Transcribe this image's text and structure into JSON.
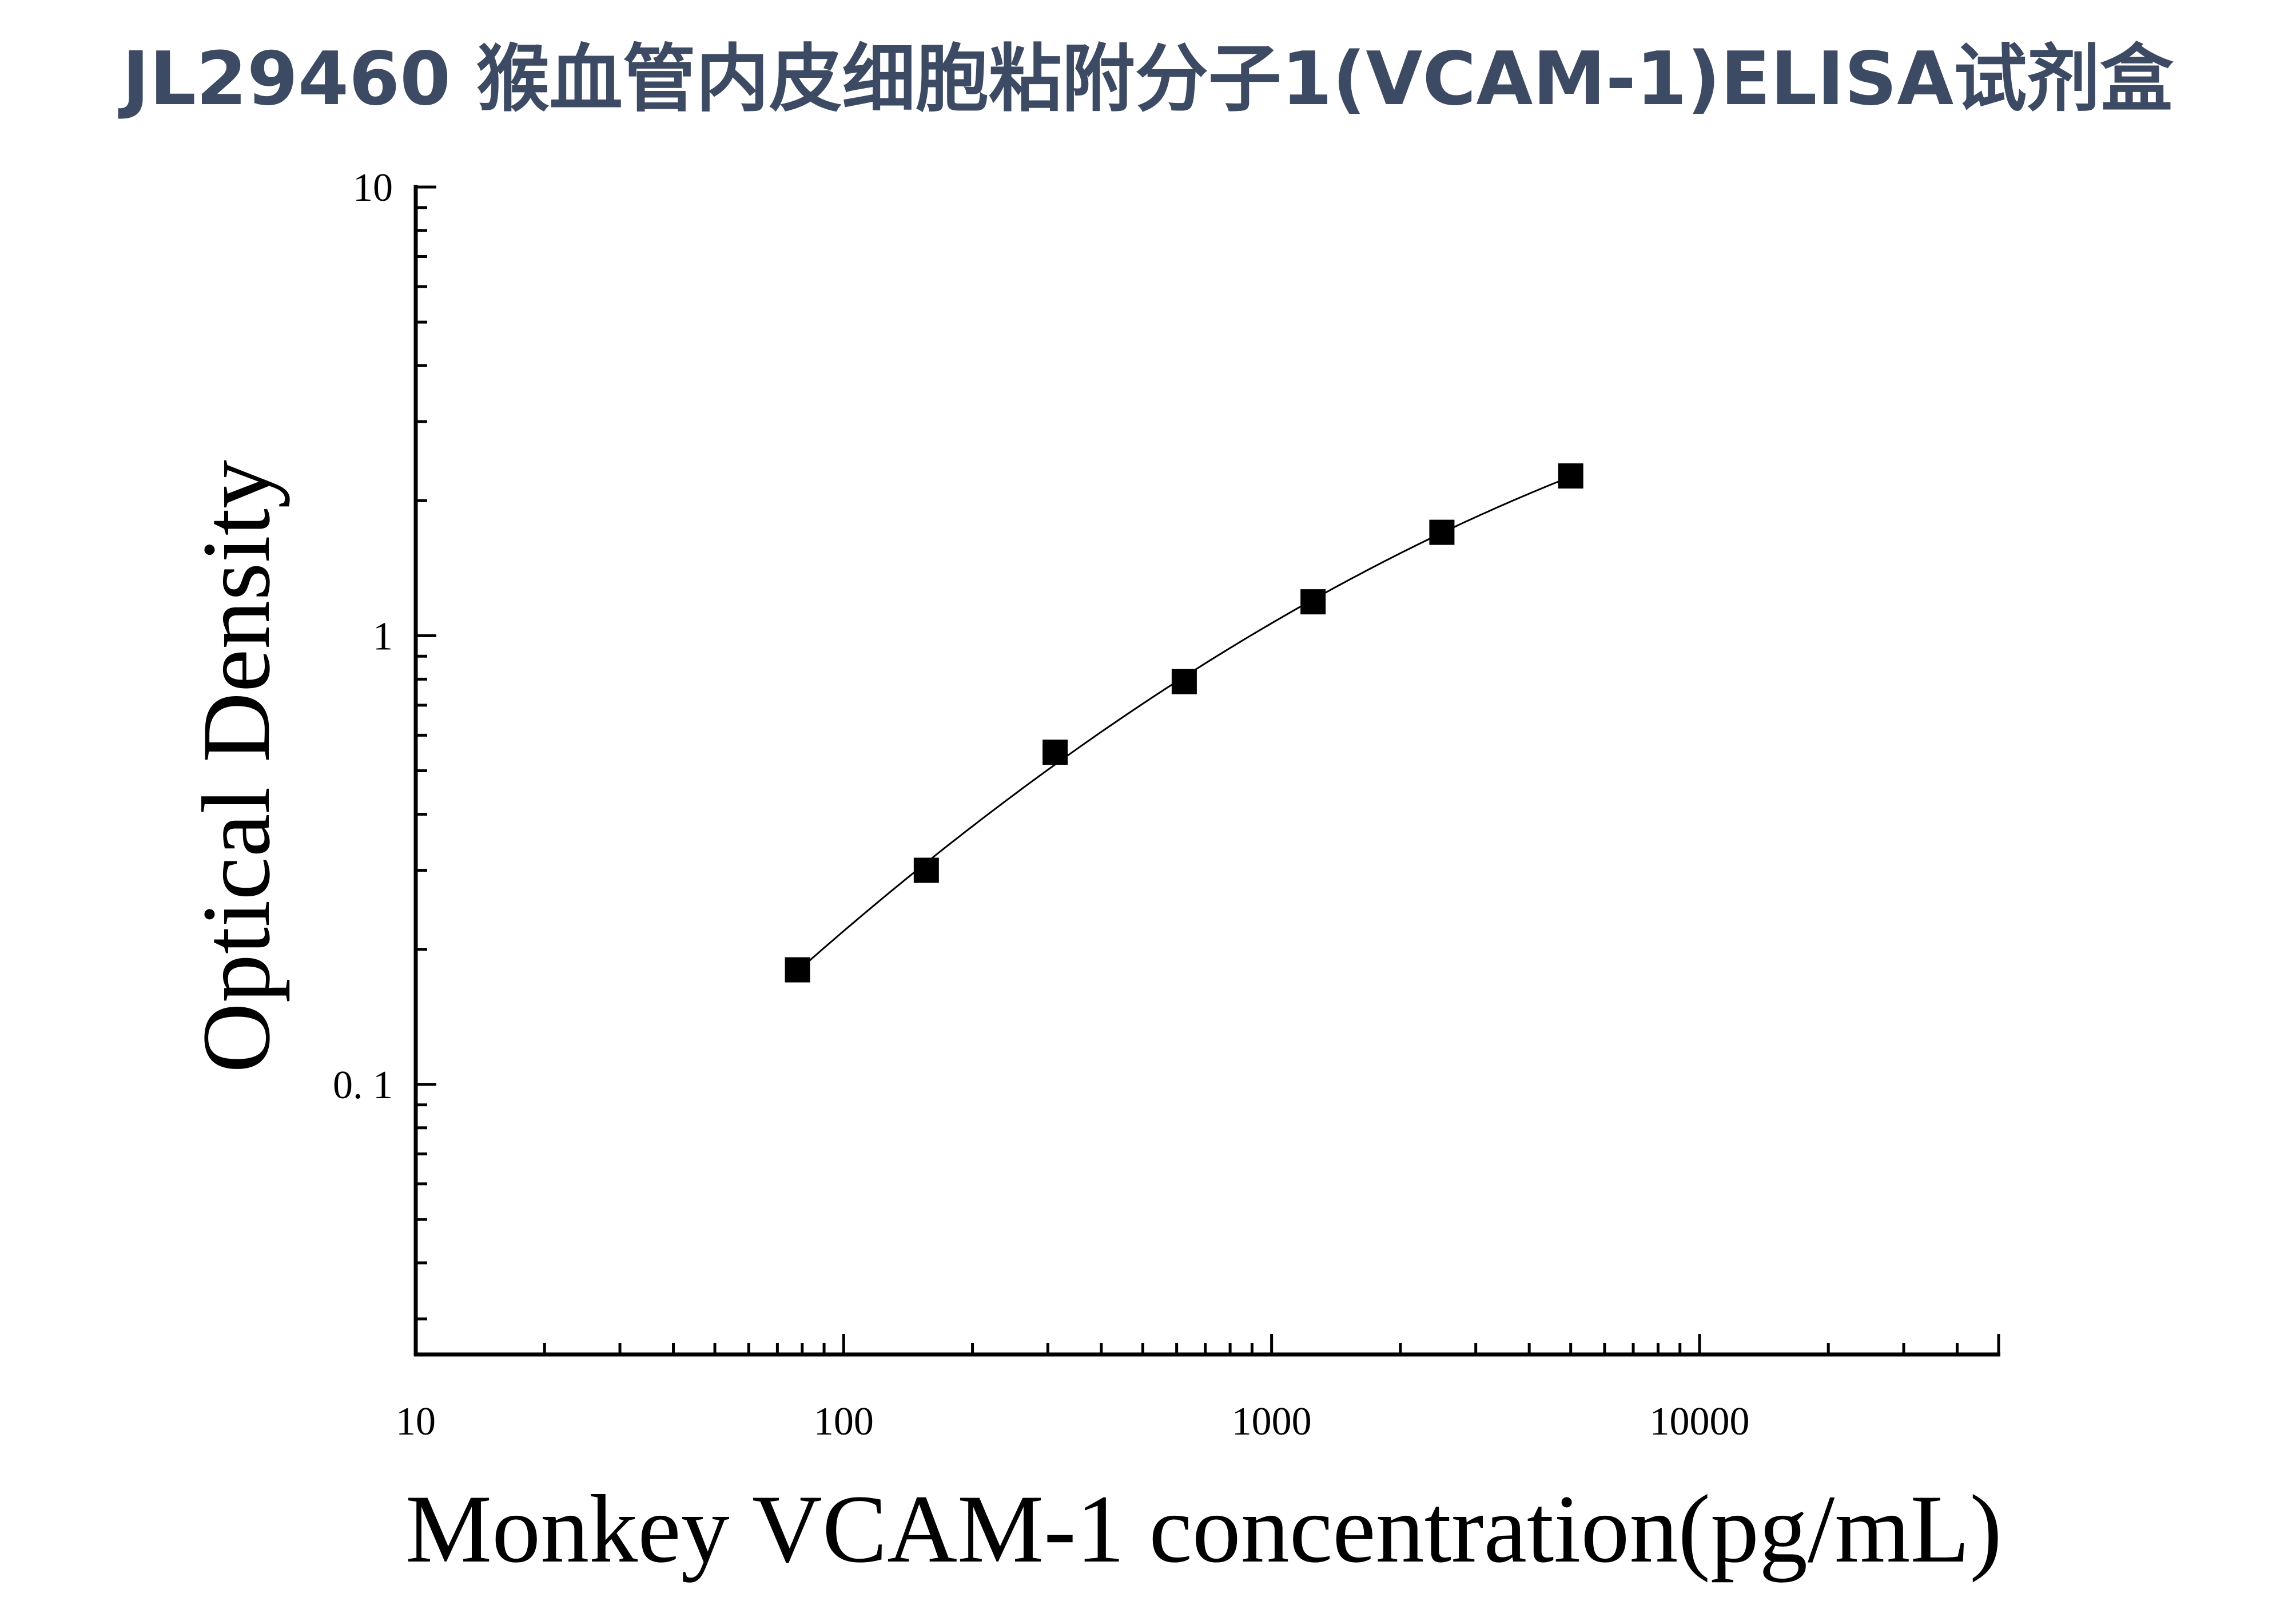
{
  "chart_data": {
    "type": "scatter",
    "title": "JL29460 猴血管内皮细胞粘附分子1(VCAM-1)ELISA试剂盒",
    "xlabel": "Monkey VCAM-1 concentration(pg/mL)",
    "ylabel": "Optical Density",
    "x_scale": "log",
    "y_scale": "log",
    "xlim": [
      10,
      50000
    ],
    "ylim": [
      0.025,
      10
    ],
    "x_ticks": [
      {
        "value": 10,
        "label": "10"
      },
      {
        "value": 100,
        "label": "100"
      },
      {
        "value": 1000,
        "label": "1000"
      },
      {
        "value": 10000,
        "label": "10000"
      }
    ],
    "y_ticks": [
      {
        "value": 0.1,
        "label": "0. 1"
      },
      {
        "value": 1,
        "label": "1"
      },
      {
        "value": 10,
        "label": "10"
      }
    ],
    "grid": false,
    "legend": "none",
    "marker_color": "#000000",
    "title_color": "#3d4a63",
    "series": [
      {
        "x": [
          78,
          156,
          312,
          625,
          1250,
          2500,
          5000
        ],
        "y": [
          0.18,
          0.3,
          0.55,
          0.79,
          1.19,
          1.7,
          2.27
        ]
      }
    ]
  }
}
